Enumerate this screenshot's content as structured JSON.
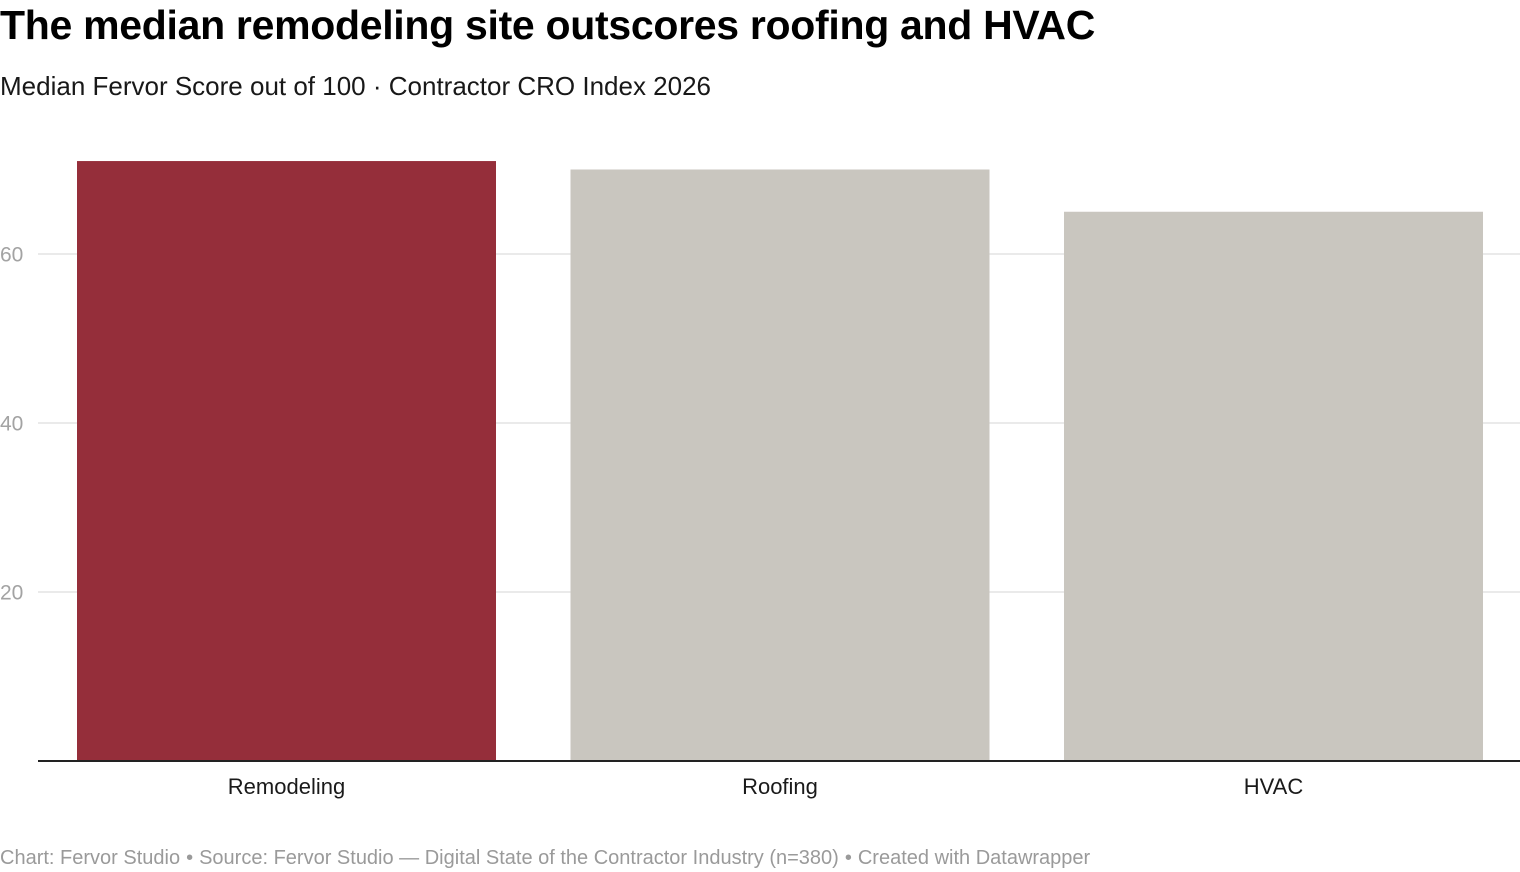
{
  "chart_data": {
    "type": "bar",
    "title": "The median remodeling site outscores roofing and HVAC",
    "subtitle": "Median Fervor Score out of 100 · Contractor CRO Index 2026",
    "categories": [
      "Remodeling",
      "Roofing",
      "HVAC"
    ],
    "values": [
      71,
      70,
      65
    ],
    "bar_colors": [
      "#952e3a",
      "#c9c6bf",
      "#c9c6bf"
    ],
    "ylim": [
      0,
      72
    ],
    "yticks": [
      20,
      40,
      60
    ],
    "xlabel": "",
    "ylabel": "",
    "grid": true,
    "legend": "none"
  },
  "footer": {
    "credit": "Chart: Fervor Studio",
    "separator": "•",
    "source": "Source: Fervor Studio — Digital State of the Contractor Industry (n=380)",
    "tool": "Created with Datawrapper"
  }
}
